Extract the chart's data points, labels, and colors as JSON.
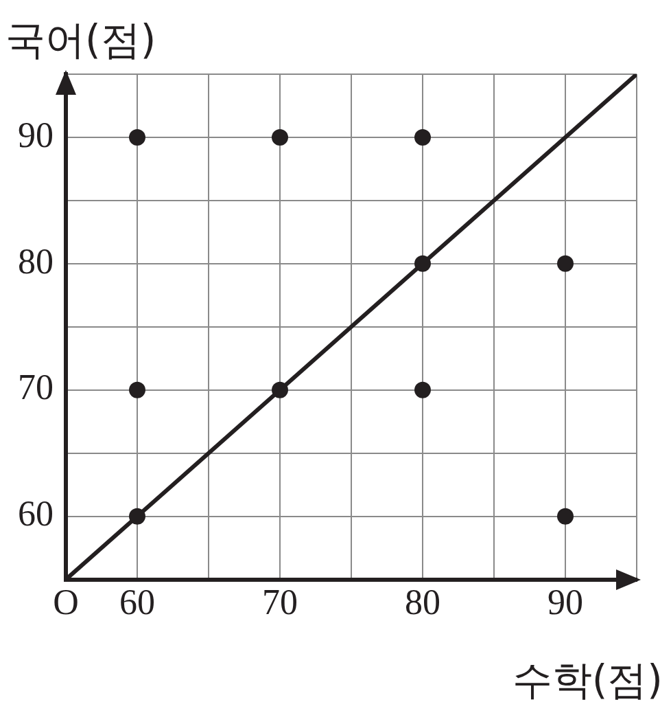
{
  "chart_data": {
    "type": "scatter",
    "xlabel": "수학(점)",
    "ylabel": "국어(점)",
    "xlim": [
      55,
      95
    ],
    "ylim": [
      55,
      95
    ],
    "xticks": [
      {
        "value": 55,
        "label": "O"
      },
      60,
      {
        "value": 65,
        "label": null
      },
      70,
      {
        "value": 75,
        "label": null
      },
      80,
      {
        "value": 85,
        "label": null
      },
      90,
      {
        "value": 95,
        "label": null
      }
    ],
    "yticks": [
      {
        "value": 55,
        "label": null
      },
      60,
      {
        "value": 65,
        "label": null
      },
      70,
      {
        "value": 75,
        "label": null
      },
      80,
      {
        "value": 85,
        "label": null
      },
      90,
      {
        "value": 95,
        "label": null
      }
    ],
    "grid": true,
    "series": [
      {
        "type": "scatter",
        "marker": "circle",
        "color": "#231f20",
        "x": [
          60,
          70,
          80,
          80,
          90,
          60,
          70,
          80,
          60,
          90
        ],
        "values": [
          90,
          90,
          90,
          80,
          80,
          70,
          70,
          70,
          60,
          60
        ]
      },
      {
        "type": "line",
        "marker": "none",
        "color": "#231f20",
        "x": [
          55,
          95
        ],
        "values": [
          55,
          95
        ]
      }
    ]
  }
}
